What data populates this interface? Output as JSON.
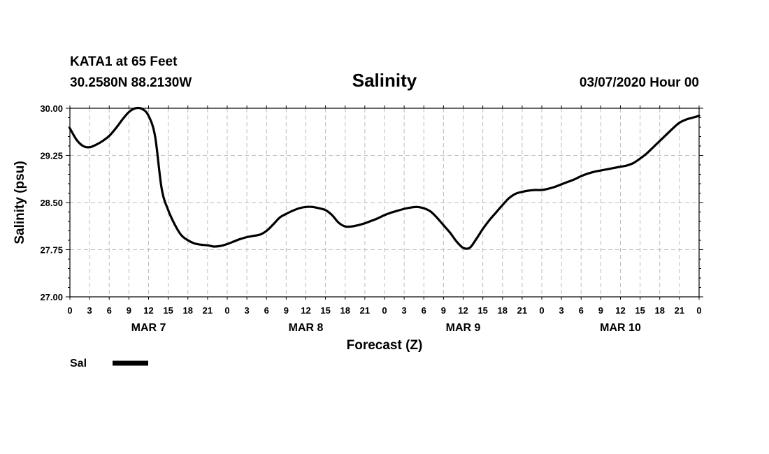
{
  "header": {
    "station": "KATA1 at 65 Feet",
    "coords": "30.2580N 88.2130W",
    "title": "Salinity",
    "run": "03/07/2020 Hour 00"
  },
  "chart_data": {
    "type": "line",
    "title": "Salinity",
    "xlabel": "Forecast (Z)",
    "ylabel": "Salinity (psu)",
    "ylim": [
      27.0,
      30.0
    ],
    "yticks": [
      "27.00",
      "27.75",
      "28.50",
      "29.25",
      "30.00"
    ],
    "xlim_hours": [
      0,
      96
    ],
    "x_tick_step_hours": 3,
    "x_tick_labels": [
      "0",
      "3",
      "6",
      "9",
      "12",
      "15",
      "18",
      "21",
      "0",
      "3",
      "6",
      "9",
      "12",
      "15",
      "18",
      "21",
      "0",
      "3",
      "6",
      "9",
      "12",
      "15",
      "18",
      "21",
      "0",
      "3",
      "6",
      "9",
      "12",
      "15",
      "18",
      "21",
      "0"
    ],
    "date_labels": [
      {
        "label": "MAR 7",
        "hour": 12
      },
      {
        "label": "MAR 8",
        "hour": 36
      },
      {
        "label": "MAR 9",
        "hour": 60
      },
      {
        "label": "MAR 10",
        "hour": 84
      }
    ],
    "grid": true,
    "legend": {
      "position": "bottom-left",
      "entries": [
        {
          "name": "Sal",
          "color": "#000000"
        }
      ]
    },
    "series": [
      {
        "name": "Sal",
        "color": "#000000",
        "x_hours": [
          0,
          1,
          2,
          3,
          4,
          5,
          6,
          7,
          8,
          9,
          10,
          11,
          12,
          13,
          14,
          15,
          16,
          17,
          18,
          19,
          20,
          21,
          22,
          23,
          24,
          25,
          26,
          27,
          28,
          29,
          30,
          31,
          32,
          33,
          34,
          35,
          36,
          37,
          38,
          39,
          40,
          41,
          42,
          43,
          44,
          45,
          46,
          47,
          48,
          49,
          50,
          51,
          52,
          53,
          54,
          55,
          56,
          57,
          58,
          59,
          60,
          61,
          62,
          63,
          64,
          65,
          66,
          67,
          68,
          69,
          70,
          71,
          72,
          73,
          74,
          75,
          76,
          77,
          78,
          79,
          80,
          81,
          82,
          83,
          84,
          85,
          86,
          87,
          88,
          89,
          90,
          91,
          92,
          93,
          94,
          95,
          96
        ],
        "values": [
          29.68,
          29.5,
          29.4,
          29.38,
          29.42,
          29.48,
          29.56,
          29.68,
          29.82,
          29.94,
          30.0,
          29.99,
          29.88,
          29.55,
          28.72,
          28.38,
          28.15,
          27.98,
          27.9,
          27.85,
          27.83,
          27.82,
          27.8,
          27.81,
          27.84,
          27.88,
          27.92,
          27.95,
          27.97,
          27.99,
          28.05,
          28.15,
          28.26,
          28.32,
          28.37,
          28.41,
          28.43,
          28.43,
          28.41,
          28.38,
          28.3,
          28.18,
          28.12,
          28.12,
          28.14,
          28.17,
          28.21,
          28.25,
          28.3,
          28.34,
          28.37,
          28.4,
          28.42,
          28.43,
          28.41,
          28.36,
          28.26,
          28.14,
          28.02,
          27.88,
          27.78,
          27.78,
          27.92,
          28.08,
          28.22,
          28.34,
          28.46,
          28.57,
          28.64,
          28.67,
          28.69,
          28.7,
          28.7,
          28.72,
          28.75,
          28.79,
          28.83,
          28.87,
          28.92,
          28.96,
          28.99,
          29.01,
          29.03,
          29.05,
          29.07,
          29.09,
          29.13,
          29.2,
          29.28,
          29.38,
          29.48,
          29.58,
          29.68,
          29.77,
          29.82,
          29.85,
          29.88
        ]
      }
    ]
  }
}
